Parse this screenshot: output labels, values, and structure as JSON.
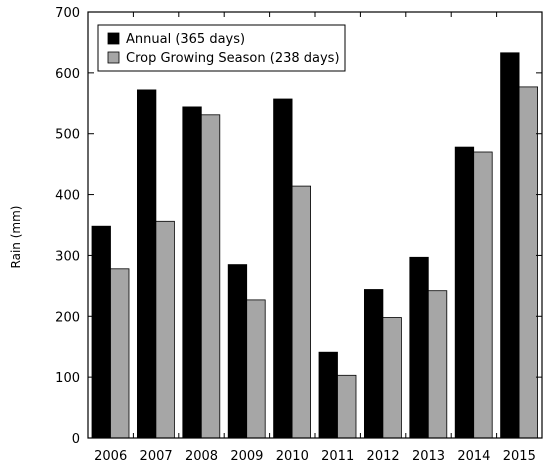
{
  "chart_data": {
    "type": "bar",
    "ylabel": "Rain (mm)",
    "xlabel": "",
    "title": "",
    "ylim": [
      0,
      700
    ],
    "yticks": [
      0,
      100,
      200,
      300,
      400,
      500,
      600,
      700
    ],
    "categories": [
      "2006",
      "2007",
      "2008",
      "2009",
      "2010",
      "2011",
      "2012",
      "2013",
      "2014",
      "2015"
    ],
    "series": [
      {
        "name": "Annual (365 days)",
        "color": "#000000",
        "values": [
          348,
          572,
          544,
          285,
          557,
          141,
          244,
          297,
          478,
          633
        ]
      },
      {
        "name": "Crop Growing Season (238 days)",
        "color": "#a6a6a6",
        "values": [
          278,
          356,
          531,
          227,
          414,
          103,
          198,
          242,
          470,
          577
        ]
      }
    ],
    "legend_position": "top-left",
    "grid": false
  }
}
